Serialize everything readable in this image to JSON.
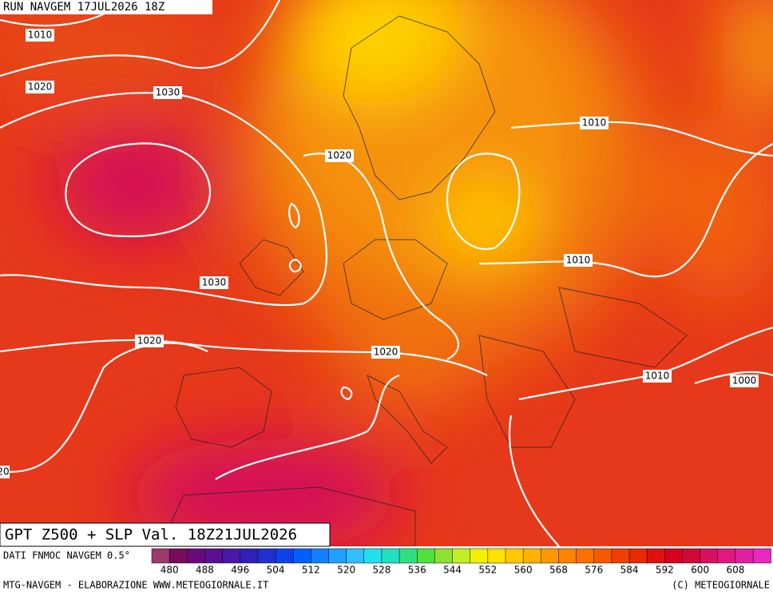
{
  "header": {
    "run": "RUN NAVGEM 17JUL2026 18Z"
  },
  "map": {
    "contour_labels": [
      "1010",
      "1020",
      "1030",
      "1020",
      "1010",
      "1010",
      "1030",
      "1020",
      "1020",
      "1010",
      "1000",
      "20"
    ]
  },
  "footer": {
    "title": "GPT Z500 + SLP Val. 18Z21JUL2026",
    "source": "DATI FNMOC NAVGEM 0.5°",
    "credit_left": "MTG-NAVGEM - ELABORAZIONE WWW.METEOGIORNALE.IT",
    "credit_right": "(C) METEOGIORNALE"
  },
  "colorbar": {
    "labels": [
      480,
      488,
      496,
      504,
      512,
      520,
      528,
      536,
      544,
      552,
      560,
      568,
      576,
      584,
      592,
      600,
      608
    ],
    "colors": [
      "#9c3a6a",
      "#7a0a5a",
      "#6a0a7a",
      "#5a1090",
      "#4a18a8",
      "#3020b8",
      "#2030d0",
      "#1040e8",
      "#0060ff",
      "#1080ff",
      "#20a0ff",
      "#30c0ff",
      "#20e0f0",
      "#20e0c0",
      "#30e080",
      "#50e040",
      "#90e030",
      "#c0f020",
      "#f0f000",
      "#ffe000",
      "#ffc800",
      "#ffb000",
      "#ff9800",
      "#ff8400",
      "#ff7000",
      "#f85800",
      "#f04000",
      "#e82800",
      "#e01010",
      "#d80020",
      "#d00838",
      "#d81060",
      "#e01880",
      "#e020a0",
      "#e828c0"
    ]
  }
}
